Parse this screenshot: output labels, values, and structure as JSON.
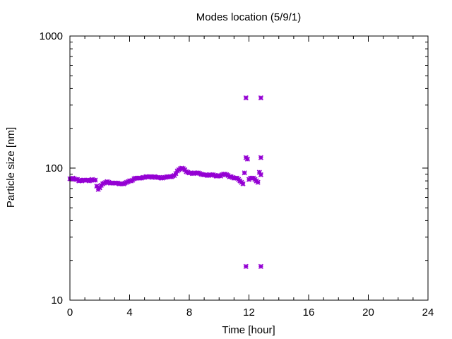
{
  "chart_data": {
    "type": "scatter",
    "title": "Modes location (5/9/1)",
    "xlabel": "Time [hour]",
    "ylabel": "Particle size [nm]",
    "xlim": [
      0,
      24
    ],
    "ylim": [
      10,
      1000
    ],
    "yscale": "log",
    "xticks": [
      0,
      4,
      8,
      12,
      16,
      20,
      24
    ],
    "xtick_labels": [
      "0",
      "4",
      "8",
      "12",
      "16",
      "20",
      "24"
    ],
    "yticks": [
      10,
      100,
      1000
    ],
    "ytick_labels": [
      "10",
      "100",
      "1000"
    ],
    "grid": false,
    "legend": "none",
    "marker_color": "#9400d3",
    "series": [
      {
        "marker": "star",
        "points": [
          [
            0.0,
            83
          ],
          [
            0.1,
            83
          ],
          [
            0.2,
            84
          ],
          [
            0.3,
            83
          ],
          [
            0.4,
            82
          ],
          [
            0.5,
            82
          ],
          [
            0.6,
            80
          ],
          [
            0.7,
            81
          ],
          [
            0.8,
            80
          ],
          [
            0.9,
            81
          ],
          [
            1.0,
            81
          ],
          [
            1.1,
            81
          ],
          [
            1.2,
            81
          ],
          [
            1.3,
            80
          ],
          [
            1.4,
            81
          ],
          [
            1.5,
            82
          ],
          [
            1.6,
            81
          ],
          [
            1.7,
            81
          ],
          [
            1.8,
            73
          ],
          [
            1.9,
            69
          ],
          [
            2.0,
            71
          ],
          [
            2.1,
            74
          ],
          [
            2.2,
            76
          ],
          [
            2.3,
            77
          ],
          [
            2.4,
            78
          ],
          [
            2.5,
            79
          ],
          [
            2.6,
            78
          ],
          [
            2.7,
            77
          ],
          [
            2.8,
            77
          ],
          [
            2.9,
            77
          ],
          [
            3.0,
            77
          ],
          [
            3.1,
            77
          ],
          [
            3.2,
            77
          ],
          [
            3.3,
            76
          ],
          [
            3.4,
            76
          ],
          [
            3.5,
            76
          ],
          [
            3.6,
            76
          ],
          [
            3.7,
            77
          ],
          [
            3.8,
            78
          ],
          [
            3.9,
            79
          ],
          [
            4.0,
            80
          ],
          [
            4.1,
            80
          ],
          [
            4.2,
            81
          ],
          [
            4.3,
            83
          ],
          [
            4.4,
            84
          ],
          [
            4.5,
            84
          ],
          [
            4.6,
            84
          ],
          [
            4.7,
            84
          ],
          [
            4.8,
            84
          ],
          [
            4.9,
            85
          ],
          [
            5.0,
            85
          ],
          [
            5.1,
            86
          ],
          [
            5.2,
            86
          ],
          [
            5.3,
            86
          ],
          [
            5.4,
            86
          ],
          [
            5.5,
            85
          ],
          [
            5.6,
            86
          ],
          [
            5.7,
            86
          ],
          [
            5.8,
            85
          ],
          [
            5.9,
            85
          ],
          [
            6.0,
            85
          ],
          [
            6.1,
            84
          ],
          [
            6.2,
            84
          ],
          [
            6.3,
            85
          ],
          [
            6.4,
            85
          ],
          [
            6.5,
            86
          ],
          [
            6.6,
            86
          ],
          [
            6.7,
            86
          ],
          [
            6.8,
            86
          ],
          [
            6.9,
            87
          ],
          [
            7.0,
            88
          ],
          [
            7.1,
            91
          ],
          [
            7.2,
            95
          ],
          [
            7.3,
            97
          ],
          [
            7.4,
            99
          ],
          [
            7.5,
            100
          ],
          [
            7.6,
            99
          ],
          [
            7.7,
            97
          ],
          [
            7.8,
            94
          ],
          [
            7.9,
            93
          ],
          [
            8.0,
            92
          ],
          [
            8.1,
            92
          ],
          [
            8.2,
            91
          ],
          [
            8.3,
            91
          ],
          [
            8.4,
            92
          ],
          [
            8.5,
            92
          ],
          [
            8.6,
            92
          ],
          [
            8.7,
            91
          ],
          [
            8.8,
            90
          ],
          [
            8.9,
            89
          ],
          [
            9.0,
            89
          ],
          [
            9.1,
            89
          ],
          [
            9.2,
            88
          ],
          [
            9.3,
            88
          ],
          [
            9.4,
            89
          ],
          [
            9.5,
            89
          ],
          [
            9.6,
            89
          ],
          [
            9.7,
            88
          ],
          [
            9.8,
            87
          ],
          [
            9.9,
            87
          ],
          [
            10.0,
            88
          ],
          [
            10.1,
            87
          ],
          [
            10.2,
            89
          ],
          [
            10.3,
            90
          ],
          [
            10.4,
            90
          ],
          [
            10.5,
            89
          ],
          [
            10.6,
            88
          ],
          [
            10.7,
            86
          ],
          [
            10.8,
            86
          ],
          [
            10.9,
            85
          ],
          [
            11.0,
            84
          ],
          [
            11.1,
            84
          ],
          [
            11.2,
            84
          ],
          [
            11.3,
            82
          ],
          [
            11.4,
            80
          ],
          [
            11.5,
            78
          ],
          [
            11.6,
            76
          ],
          [
            11.7,
            92
          ],
          [
            11.8,
            120
          ],
          [
            11.9,
            117
          ],
          [
            11.8,
            340
          ],
          [
            11.8,
            18
          ],
          [
            12.0,
            82
          ],
          [
            12.1,
            84
          ],
          [
            12.2,
            84
          ],
          [
            12.3,
            84
          ],
          [
            12.4,
            82
          ],
          [
            12.5,
            80
          ],
          [
            12.6,
            78
          ],
          [
            12.7,
            93
          ],
          [
            12.8,
            89
          ],
          [
            12.8,
            120
          ],
          [
            12.8,
            340
          ],
          [
            12.8,
            18
          ]
        ]
      }
    ]
  }
}
